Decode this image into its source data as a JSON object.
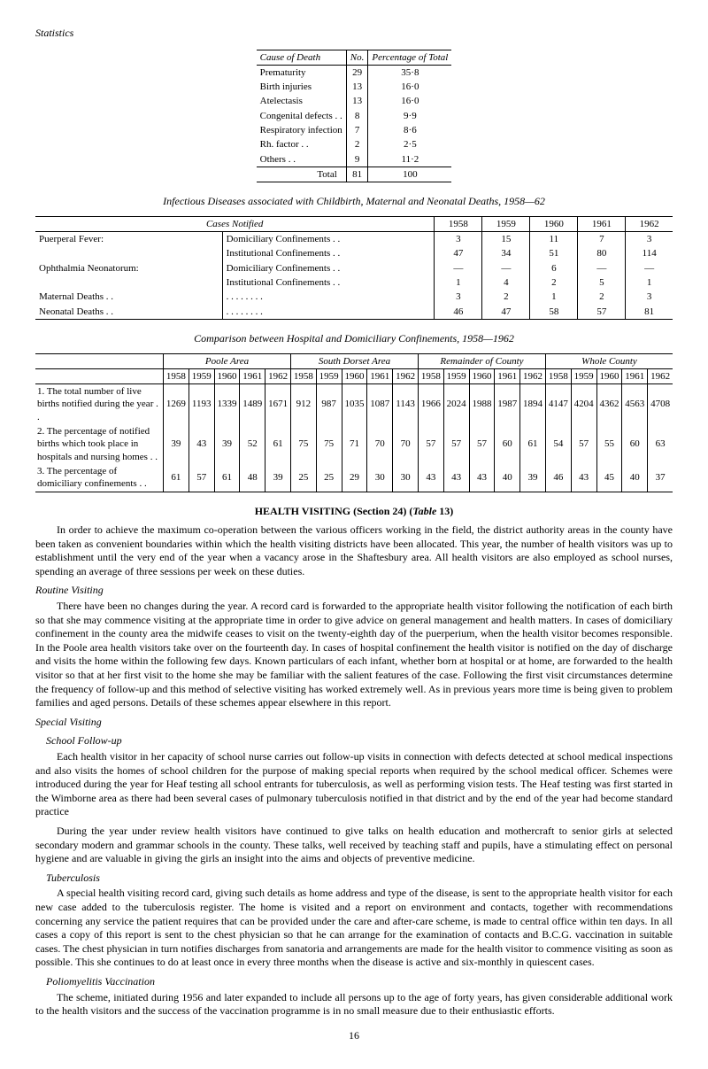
{
  "page_label": "Statistics",
  "table1": {
    "headers": [
      "Cause of Death",
      "No.",
      "Percentage of Total"
    ],
    "rows": [
      [
        "Prematurity",
        "29",
        "35·8"
      ],
      [
        "Birth injuries",
        "13",
        "16·0"
      ],
      [
        "Atelectasis",
        "13",
        "16·0"
      ],
      [
        "Congenital defects   . .",
        "8",
        "9·9"
      ],
      [
        "Respiratory infection",
        "7",
        "8·6"
      ],
      [
        "Rh. factor . .",
        "2",
        "2·5"
      ],
      [
        "Others   . .",
        "9",
        "11·2"
      ]
    ],
    "total": [
      "Total",
      "81",
      "100"
    ]
  },
  "table2": {
    "title": "Infectious Diseases associated with Childbirth, Maternal and Neonatal Deaths, 1958—62",
    "head_left": "Cases Notified",
    "years": [
      "1958",
      "1959",
      "1960",
      "1961",
      "1962"
    ],
    "rows": [
      [
        "Puerperal Fever:",
        "Domiciliary Confinements   . .",
        "3",
        "15",
        "11",
        "7",
        "3"
      ],
      [
        "",
        "Institutional Confinements   . .",
        "47",
        "34",
        "51",
        "80",
        "114"
      ],
      [
        "Ophthalmia Neonatorum:",
        "Domiciliary Confinements   . .",
        "—",
        "—",
        "6",
        "—",
        "—"
      ],
      [
        "",
        "Institutional Confinements   . .",
        "1",
        "4",
        "2",
        "5",
        "1"
      ],
      [
        "Maternal Deaths   . .",
        ". .    . .    . .    . .",
        "3",
        "2",
        "1",
        "2",
        "3"
      ],
      [
        "Neonatal Deaths   . .",
        ". .    . .    . .    . .",
        "46",
        "47",
        "58",
        "57",
        "81"
      ]
    ]
  },
  "table3": {
    "title": "Comparison between Hospital and Domiciliary Confinements, 1958—1962",
    "groups": [
      "Poole Area",
      "South Dorset Area",
      "Remainder of County",
      "Whole County"
    ],
    "years": [
      "1958",
      "1959",
      "1960",
      "1961",
      "1962",
      "1958",
      "1959",
      "1960",
      "1961",
      "1962",
      "1958",
      "1959",
      "1960",
      "1961",
      "1962",
      "1958",
      "1959",
      "1960",
      "1961",
      "1962"
    ],
    "rows": [
      [
        "1. The total number of live births notified during the year . .",
        "1269",
        "1193",
        "1339",
        "1489",
        "1671",
        "912",
        "987",
        "1035",
        "1087",
        "1143",
        "1966",
        "2024",
        "1988",
        "1987",
        "1894",
        "4147",
        "4204",
        "4362",
        "4563",
        "4708"
      ],
      [
        "2. The percentage of notified births which took place in hospitals and nursing homes   . .",
        "39",
        "43",
        "39",
        "52",
        "61",
        "75",
        "75",
        "71",
        "70",
        "70",
        "57",
        "57",
        "57",
        "60",
        "61",
        "54",
        "57",
        "55",
        "60",
        "63"
      ],
      [
        "3. The percentage of domiciliary confinements   . .",
        "61",
        "57",
        "61",
        "48",
        "39",
        "25",
        "25",
        "29",
        "30",
        "30",
        "43",
        "43",
        "43",
        "40",
        "39",
        "46",
        "43",
        "45",
        "40",
        "37"
      ]
    ]
  },
  "section_heading": "HEALTH VISITING (Section 24) (Table 13)",
  "para1": "In order to achieve the maximum co-operation between the various officers working in the field, the district authority areas in the county have been taken as convenient boundaries within which the health visiting districts have been allocated. This year, the number of health visitors was up to establishment until the very end of the year when a vacancy arose in the Shaftesbury area. All health visitors are also employed as school nurses, spending an average of three sessions per week on these duties.",
  "sub_routine": "Routine Visiting",
  "para2": "There have been no changes during the year. A record card is forwarded to the appropriate health visitor following the notification of each birth so that she may commence visiting at the appropriate time in order to give advice on general management and health matters. In cases of domiciliary confinement in the county area the midwife ceases to visit on the twenty-eighth day of the puerperium, when the health visitor becomes responsible. In the Poole area health visitors take over on the fourteenth day. In cases of hospital confinement the health visitor is notified on the day of discharge and visits the home within the following few days. Known particulars of each infant, whether born at hospital or at home, are forwarded to the health visitor so that at her first visit to the home she may be familiar with the salient features of the case. Following the first visit circumstances determine the frequency of follow-up and this method of selective visiting has worked extremely well. As in previous years more time is being given to problem families and aged persons. Details of these schemes appear elsewhere in this report.",
  "sub_special": "Special Visiting",
  "sub_school": "School Follow-up",
  "para3": "Each health visitor in her capacity of school nurse carries out follow-up visits in connection with defects detected at school medical inspections and also visits the homes of school children for the purpose of making special reports when required by the school medical officer. Schemes were introduced during the year for Heaf testing all school entrants for tuberculosis, as well as performing vision tests. The Heaf testing was first started in the Wimborne area as there had been several cases of pulmonary tuberculosis notified in that district and by the end of the year had become standard practice",
  "para4": "During the year under review health visitors have continued to give talks on health education and mothercraft to senior girls at selected secondary modern and grammar schools in the county. These talks, well received by teaching staff and pupils, have a stimulating effect on personal hygiene and are valuable in giving the girls an insight into the aims and objects of preventive medicine.",
  "sub_tb": "Tuberculosis",
  "para5": "A special health visiting record card, giving such details as home address and type of the disease, is sent to the appropriate health visitor for each new case added to the tuberculosis register. The home is visited and a report on environment and contacts, together with recommendations concerning any service the patient requires that can be provided under the care and after-care scheme, is made to central office within ten days. In all cases a copy of this report is sent to the chest physician so that he can arrange for the examination of contacts and B.C.G. vaccination in suitable cases. The chest physician in turn notifies discharges from sanatoria and arrangements are made for the health visitor to commence visiting as soon as possible. This she continues to do at least once in every three months when the disease is active and six-monthly in quiescent cases.",
  "sub_polio": "Poliomyelitis Vaccination",
  "para6": "The scheme, initiated during 1956 and later expanded to include all persons up to the age of forty years, has given considerable additional work to the health visitors and the success of the vaccination programme is in no small measure due to their enthusiastic efforts.",
  "page_number": "16"
}
